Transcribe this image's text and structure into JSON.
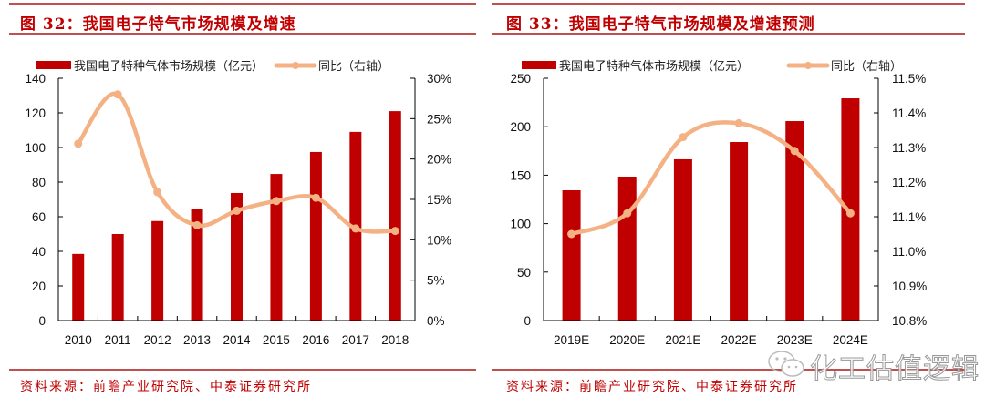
{
  "colors": {
    "bar": "#c00000",
    "line": "#f4b183",
    "title": "#c00000",
    "rule": "#c0504d",
    "axis": "#000000"
  },
  "left_panel": {
    "title": "图 32：我国电子特气市场规模及增速",
    "source": "资料来源：前瞻产业研究院、中泰证券研究所"
  },
  "right_panel": {
    "title": "图 33：我国电子特气市场规模及增速预测",
    "source": "资料来源：前瞻产业研究院、中泰证券研究所"
  },
  "watermark": {
    "text": "化工估值逻辑",
    "icon": "wechat-icon"
  },
  "chart_data": [
    {
      "type": "bar",
      "title": "图 32：我国电子特气市场规模及增速",
      "categories": [
        "2010",
        "2011",
        "2012",
        "2013",
        "2014",
        "2015",
        "2016",
        "2017",
        "2018"
      ],
      "series": [
        {
          "name": "我国电子特种气体市场规模（亿元）",
          "type": "bar",
          "axis": "left",
          "values": [
            38.5,
            50,
            57.5,
            64.7,
            73.7,
            84.7,
            97.4,
            109,
            121
          ]
        },
        {
          "name": "同比（右轴）",
          "type": "line",
          "axis": "right",
          "smooth": true,
          "values": [
            21.9,
            28.0,
            15.9,
            11.8,
            13.6,
            14.8,
            15.2,
            11.4,
            11.1
          ]
        }
      ],
      "yleft": {
        "min": 0,
        "max": 140,
        "ticks": [
          0,
          20,
          40,
          60,
          80,
          100,
          120,
          140
        ],
        "tick_labels": [
          "0",
          "20",
          "40",
          "60",
          "80",
          "100",
          "120",
          "140"
        ]
      },
      "yright": {
        "min": 0,
        "max": 30,
        "ticks": [
          0,
          5,
          10,
          15,
          20,
          25,
          30
        ],
        "tick_labels": [
          "0%",
          "5%",
          "10%",
          "15%",
          "20%",
          "25%",
          "30%"
        ]
      },
      "xlabel": "",
      "ylabel": "",
      "grid": false,
      "legend": "top"
    },
    {
      "type": "bar",
      "title": "图 33：我国电子特气市场规模及增速预测",
      "categories": [
        "2019E",
        "2020E",
        "2021E",
        "2022E",
        "2023E",
        "2024E"
      ],
      "series": [
        {
          "name": "我国电子特种气体市场规模（亿元）",
          "type": "bar",
          "axis": "left",
          "values": [
            134.4,
            148.5,
            166.4,
            184.2,
            205.8,
            229.3
          ]
        },
        {
          "name": "同比（右轴）",
          "type": "line",
          "axis": "right",
          "smooth": true,
          "values": [
            11.05,
            11.11,
            11.33,
            11.37,
            11.29,
            11.11
          ]
        }
      ],
      "yleft": {
        "min": 0,
        "max": 250,
        "ticks": [
          0,
          50,
          100,
          150,
          200,
          250
        ],
        "tick_labels": [
          "0",
          "50",
          "100",
          "150",
          "200",
          "250"
        ]
      },
      "yright": {
        "min": 10.8,
        "max": 11.5,
        "ticks": [
          10.8,
          10.9,
          11.0,
          11.1,
          11.2,
          11.3,
          11.4,
          11.5
        ],
        "tick_labels": [
          "10.8%",
          "10.9%",
          "11.0%",
          "11.1%",
          "11.2%",
          "11.3%",
          "11.4%",
          "11.5%"
        ]
      },
      "xlabel": "",
      "ylabel": "",
      "grid": false,
      "legend": "top"
    }
  ]
}
